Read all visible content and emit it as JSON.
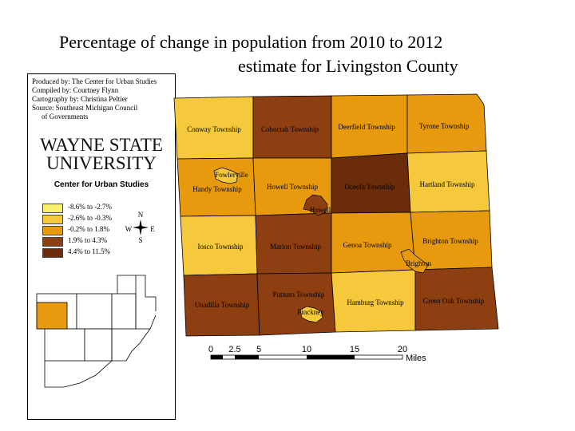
{
  "title": {
    "line1": "Percentage of change in population from 2010 to 2012",
    "line2": "estimate for Livingston County"
  },
  "credits": [
    "Produced by: The Center for Urban Studies",
    "Compiled by: Courtney Flynn",
    "Cartography by: Christina Peltier",
    "Source: Southeast Michigan Council",
    "of Governments"
  ],
  "logo": {
    "line1": "WAYNE STATE",
    "line2": "UNIVERSITY",
    "subtitle": "Center for Urban Studies"
  },
  "legend": [
    {
      "label": "-8.6% to -2.7%",
      "color": "#f8f16e"
    },
    {
      "label": "-2.6% to -0.3%",
      "color": "#f5c93b"
    },
    {
      "label": "-0.2% to  1.8%",
      "color": "#e89a0e"
    },
    {
      "label": "1.9% to  4.3%",
      "color": "#8d3f12"
    },
    {
      "label": "4.4% to  11.5%",
      "color": "#6a2c0b"
    }
  ],
  "compass": {
    "n": "N",
    "s": "S",
    "e": "E",
    "w": "W"
  },
  "townships": [
    {
      "name": "Conway Township",
      "color": "#f5c93b"
    },
    {
      "name": "Cohoctah Township",
      "color": "#8d3f12"
    },
    {
      "name": "Deerfield Township",
      "color": "#e89a0e"
    },
    {
      "name": "Tyrone Township",
      "color": "#e89a0e"
    },
    {
      "name": "Handy Township",
      "color": "#e89a0e"
    },
    {
      "name": "Howell Township",
      "color": "#e89a0e"
    },
    {
      "name": "Oceola Township",
      "color": "#6a2c0b"
    },
    {
      "name": "Hartland Township",
      "color": "#f5c93b"
    },
    {
      "name": "Iosco Township",
      "color": "#f5c93b"
    },
    {
      "name": "Marion Township",
      "color": "#8d3f12"
    },
    {
      "name": "Genoa Township",
      "color": "#e89a0e"
    },
    {
      "name": "Brighton Township",
      "color": "#e89a0e"
    },
    {
      "name": "Unadilla Township",
      "color": "#8d3f12"
    },
    {
      "name": "Putnam Township",
      "color": "#8d3f12"
    },
    {
      "name": "Hamburg Township",
      "color": "#f5c93b"
    },
    {
      "name": "Green Oak Township",
      "color": "#8d3f12"
    }
  ],
  "cities": [
    {
      "name": "Fowlerville",
      "color": "#f5c93b"
    },
    {
      "name": "Howell",
      "color": "#8d3f12"
    },
    {
      "name": "Brighton",
      "color": "#e89a0e"
    },
    {
      "name": "Pinckney",
      "color": "#f5c93b"
    }
  ],
  "scale": {
    "ticks": [
      "0",
      "2.5",
      "5",
      "10",
      "15",
      "20"
    ],
    "unit": "Miles"
  },
  "locator": {
    "highlight_color": "#e89a0e"
  }
}
